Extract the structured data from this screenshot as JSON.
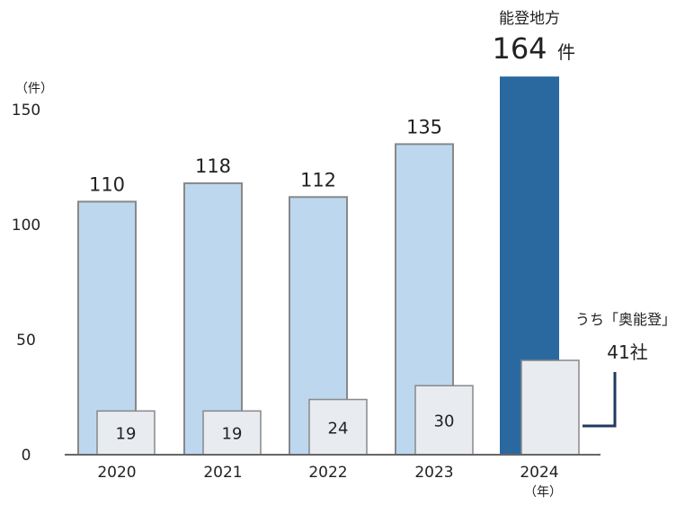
{
  "chart_data": {
    "type": "bar",
    "categories": [
      "2020",
      "2021",
      "2022",
      "2023",
      "2024"
    ],
    "series": [
      {
        "values": [
          110,
          118,
          112,
          135,
          164
        ]
      },
      {
        "values": [
          19,
          19,
          24,
          30,
          41
        ]
      }
    ],
    "data_labels_main": [
      "110",
      "118",
      "112",
      "135",
      ""
    ],
    "data_labels_sub": [
      "19",
      "19",
      "24",
      "30",
      ""
    ],
    "yunit": "（件）",
    "xunit": "（年）",
    "yticks": [
      0,
      50,
      100,
      150
    ],
    "ylim": [
      0,
      164
    ],
    "highlight": {
      "label": "能登地方",
      "value_text": "164",
      "value_unit": "件",
      "sub_label": "うち「奥能登」",
      "sub_value_text": "41社"
    },
    "colors": {
      "bar_main": "#bdd7ee",
      "bar_highlight": "#2a69a0",
      "bar_sub": "#e8ecf0",
      "bar_stroke": "#888888",
      "axis": "#666666",
      "callout": "#1f3a5f"
    }
  }
}
